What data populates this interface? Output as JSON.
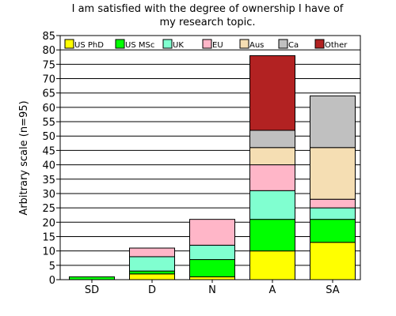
{
  "chart_data": {
    "type": "bar",
    "stacked": true,
    "title": "I am satisfied with the degree of ownership I have of my research topic.",
    "title_lines": [
      "I am satisfied with the degree of ownership I have of",
      "my research topic."
    ],
    "xlabel": "",
    "ylabel": "Arbitrary scale (n=95)",
    "ylim": [
      0,
      85
    ],
    "yticks": [
      0,
      5,
      10,
      15,
      20,
      25,
      30,
      35,
      40,
      45,
      50,
      55,
      60,
      65,
      70,
      75,
      80,
      85
    ],
    "grid": "horizontal",
    "legend_position": "top",
    "categories": [
      "SD",
      "D",
      "N",
      "A",
      "SA"
    ],
    "series": [
      {
        "name": "US PhD",
        "color": "#ffff00",
        "values": [
          0,
          2,
          1,
          10,
          13
        ]
      },
      {
        "name": "US MSc",
        "color": "#00ff00",
        "values": [
          1,
          1,
          6,
          11,
          8
        ]
      },
      {
        "name": "UK",
        "color": "#80ffd0",
        "values": [
          0,
          5,
          5,
          10,
          4
        ]
      },
      {
        "name": "EU",
        "color": "#ffb6c8",
        "values": [
          0,
          3,
          9,
          9,
          3
        ]
      },
      {
        "name": "Aus",
        "color": "#f5deb3",
        "values": [
          0,
          0,
          0,
          6,
          18
        ]
      },
      {
        "name": "Ca",
        "color": "#c0c0c0",
        "values": [
          0,
          0,
          0,
          6,
          18
        ]
      },
      {
        "name": "Other",
        "color": "#b22222",
        "values": [
          0,
          0,
          0,
          26,
          0
        ]
      }
    ]
  }
}
